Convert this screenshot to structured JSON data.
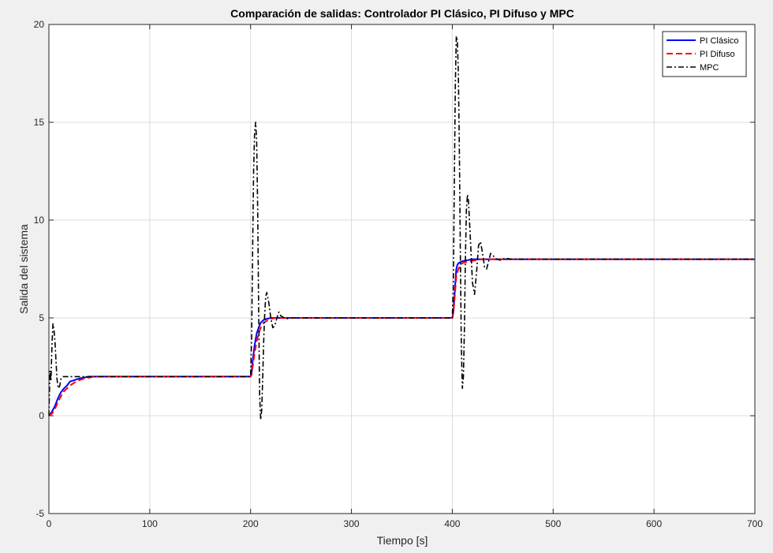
{
  "chart_data": {
    "type": "line",
    "title": "Comparación de salidas: Controlador PI Clásico, PI Difuso y MPC",
    "xlabel": "Tiempo [s]",
    "ylabel": "Salida del sistema",
    "xlim": [
      0,
      700
    ],
    "ylim": [
      -5,
      20
    ],
    "xticks": [
      0,
      100,
      200,
      300,
      400,
      500,
      600,
      700
    ],
    "yticks": [
      -5,
      0,
      5,
      10,
      15,
      20
    ],
    "xtick_labels": [
      "0",
      "100",
      "200",
      "300",
      "400",
      "500",
      "600",
      "700"
    ],
    "ytick_labels": [
      "-5",
      "0",
      "5",
      "10",
      "15",
      "20"
    ],
    "grid": true,
    "legend_position": "top-right",
    "series": [
      {
        "name": "PI Clásico",
        "color": "#0000ff",
        "style": "solid",
        "x": [
          0,
          3,
          6,
          9,
          12,
          15,
          18,
          21,
          24,
          27,
          30,
          35,
          40,
          45,
          50,
          100,
          150,
          200,
          201,
          202,
          204,
          206,
          208,
          210,
          213,
          216,
          220,
          225,
          230,
          300,
          350,
          400,
          401,
          402,
          403,
          404,
          405,
          406,
          408,
          410,
          415,
          420,
          430,
          440,
          450,
          500,
          600,
          700
        ],
        "y": [
          0,
          0.2,
          0.5,
          0.9,
          1.2,
          1.4,
          1.55,
          1.75,
          1.8,
          1.85,
          1.9,
          1.95,
          2.0,
          2.0,
          2.0,
          2.0,
          2.0,
          2.0,
          2.2,
          2.8,
          3.6,
          4.2,
          4.5,
          4.75,
          4.9,
          4.95,
          5.0,
          5.0,
          5.0,
          5.0,
          5.0,
          5.0,
          5.3,
          6.0,
          6.8,
          7.5,
          7.7,
          7.8,
          7.85,
          7.9,
          7.95,
          8.0,
          8.0,
          8.0,
          8.0,
          8.0,
          8.0,
          8.0
        ]
      },
      {
        "name": "PI Difuso",
        "color": "#ff0000",
        "style": "dashed",
        "x": [
          0,
          3,
          6,
          9,
          12,
          15,
          18,
          21,
          24,
          27,
          30,
          35,
          40,
          45,
          50,
          100,
          150,
          200,
          201,
          202,
          204,
          206,
          208,
          210,
          213,
          216,
          220,
          225,
          230,
          300,
          350,
          400,
          401,
          402,
          403,
          404,
          406,
          408,
          410,
          415,
          420,
          425,
          430,
          440,
          450,
          500,
          600,
          700
        ],
        "y": [
          0,
          0.1,
          0.35,
          0.7,
          1.0,
          1.25,
          1.4,
          1.55,
          1.65,
          1.75,
          1.82,
          1.9,
          1.95,
          2.0,
          2.0,
          2.0,
          2.0,
          2.0,
          2.1,
          2.5,
          3.2,
          3.8,
          4.2,
          4.5,
          4.75,
          4.85,
          4.95,
          5.0,
          5.0,
          5.0,
          5.0,
          5.0,
          5.2,
          5.8,
          6.5,
          7.1,
          7.5,
          7.7,
          7.8,
          7.88,
          7.92,
          7.96,
          8.0,
          8.0,
          8.0,
          8.0,
          8.0,
          8.0
        ]
      },
      {
        "name": "MPC",
        "color": "#000000",
        "style": "dashdot",
        "x": [
          0,
          1,
          2,
          3,
          4,
          5,
          6,
          7,
          8,
          9,
          10,
          11,
          12,
          14,
          16,
          20,
          30,
          50,
          100,
          150,
          200,
          201,
          202,
          203,
          204,
          205,
          206,
          207,
          208,
          209,
          210,
          211,
          212,
          213,
          214,
          215,
          216,
          218,
          220,
          222,
          224,
          226,
          228,
          230,
          235,
          240,
          260,
          300,
          350,
          400,
          401,
          402,
          403,
          404,
          405,
          406,
          407,
          408,
          409,
          410,
          411,
          412,
          413,
          414,
          415,
          416,
          418,
          420,
          422,
          424,
          426,
          428,
          430,
          432,
          434,
          436,
          438,
          440,
          444,
          448,
          452,
          460,
          500,
          600,
          700
        ],
        "y": [
          0,
          2.3,
          1.8,
          3.5,
          4.7,
          4.4,
          3.8,
          2.8,
          1.9,
          1.5,
          1.4,
          1.6,
          1.9,
          2.0,
          2.0,
          2.0,
          2.0,
          2.0,
          2.0,
          2.0,
          2.0,
          4.0,
          8.5,
          12.5,
          14.5,
          15.0,
          14.0,
          10.5,
          5.5,
          1.0,
          -0.2,
          0.3,
          2.0,
          3.8,
          5.2,
          6.1,
          6.3,
          5.8,
          5.0,
          4.5,
          4.6,
          5.0,
          5.3,
          5.1,
          4.95,
          5.0,
          5.0,
          5.0,
          5.0,
          5.0,
          6.5,
          12.0,
          17.0,
          19.4,
          19.2,
          17.5,
          13.5,
          8.0,
          3.5,
          1.4,
          2.0,
          4.5,
          8.0,
          10.5,
          11.3,
          11.0,
          9.0,
          6.8,
          6.2,
          7.3,
          8.7,
          8.9,
          8.3,
          7.6,
          7.5,
          7.9,
          8.3,
          8.2,
          8.0,
          7.95,
          8.05,
          8.0,
          8.0,
          8.0,
          8.0
        ]
      }
    ]
  }
}
